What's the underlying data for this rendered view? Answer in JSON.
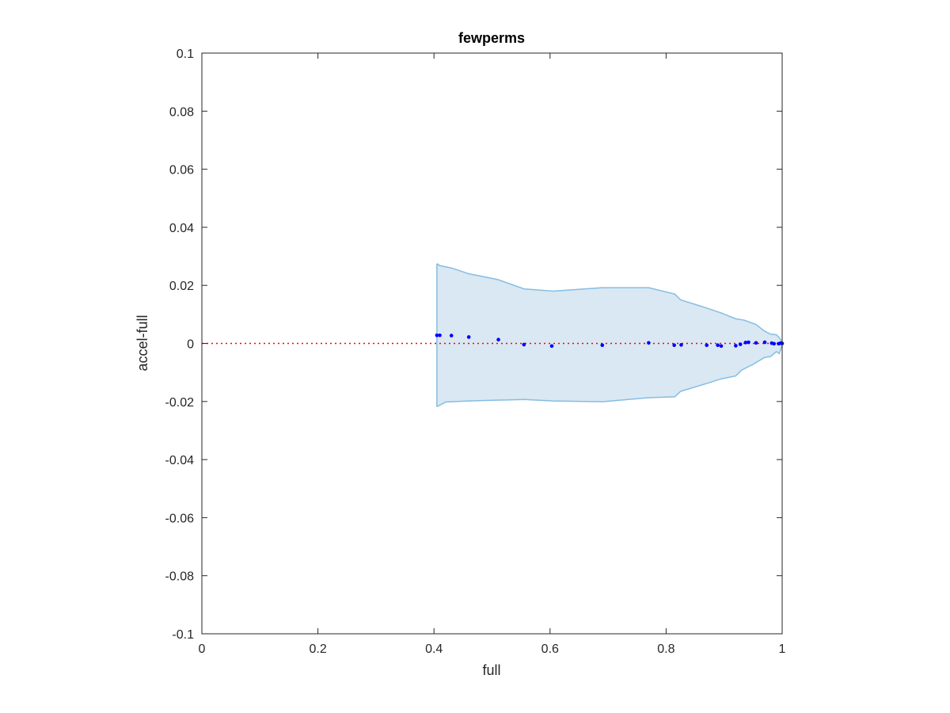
{
  "chart_data": {
    "type": "scatter",
    "title": "fewperms",
    "xlabel": "full",
    "ylabel": "accel-full",
    "xlim": [
      0,
      1
    ],
    "ylim": [
      -0.1,
      0.1
    ],
    "xticks": [
      0,
      0.2,
      0.4,
      0.6,
      0.8,
      1
    ],
    "xtick_labels": [
      "0",
      "0.2",
      "0.4",
      "0.6",
      "0.8",
      "1"
    ],
    "yticks": [
      0.1,
      0.08,
      0.06,
      0.04,
      0.02,
      0,
      -0.02,
      -0.04,
      -0.06,
      -0.08,
      -0.1
    ],
    "ytick_labels": [
      "0.1",
      "0.08",
      "0.06",
      "0.04",
      "0.02",
      "0",
      "-0.02",
      "-0.04",
      "-0.06",
      "-0.08",
      "-0.1"
    ],
    "grid": false,
    "reference_line": {
      "y": 0,
      "style": "dotted",
      "color": "#ff0000"
    },
    "band": {
      "fill": "#d9e8f3",
      "edge": "#86bde2",
      "upper": [
        [
          0.405,
          0.0275
        ],
        [
          0.41,
          0.0268
        ],
        [
          0.43,
          0.026
        ],
        [
          0.46,
          0.024
        ],
        [
          0.51,
          0.022
        ],
        [
          0.555,
          0.0188
        ],
        [
          0.605,
          0.018
        ],
        [
          0.69,
          0.0192
        ],
        [
          0.77,
          0.0192
        ],
        [
          0.815,
          0.017
        ],
        [
          0.825,
          0.015
        ],
        [
          0.87,
          0.0122
        ],
        [
          0.895,
          0.0105
        ],
        [
          0.92,
          0.0085
        ],
        [
          0.935,
          0.008
        ],
        [
          0.955,
          0.0065
        ],
        [
          0.97,
          0.0042
        ],
        [
          0.98,
          0.0032
        ],
        [
          0.99,
          0.003
        ],
        [
          0.995,
          0.002
        ],
        [
          1,
          0.0005
        ]
      ],
      "lower": [
        [
          0.405,
          -0.0218
        ],
        [
          0.42,
          -0.0202
        ],
        [
          0.46,
          -0.0198
        ],
        [
          0.555,
          -0.0193
        ],
        [
          0.605,
          -0.0198
        ],
        [
          0.69,
          -0.0201
        ],
        [
          0.77,
          -0.0187
        ],
        [
          0.815,
          -0.0184
        ],
        [
          0.825,
          -0.0165
        ],
        [
          0.87,
          -0.0138
        ],
        [
          0.895,
          -0.0122
        ],
        [
          0.92,
          -0.0112
        ],
        [
          0.93,
          -0.0092
        ],
        [
          0.95,
          -0.0072
        ],
        [
          0.97,
          -0.0048
        ],
        [
          0.98,
          -0.0045
        ],
        [
          0.99,
          -0.0028
        ],
        [
          0.995,
          -0.0035
        ],
        [
          1,
          -0.0005
        ]
      ]
    },
    "series": [
      {
        "color": "#0000ff",
        "points": [
          [
            0.405,
            0.0028
          ],
          [
            0.41,
            0.0028
          ],
          [
            0.43,
            0.0027
          ],
          [
            0.46,
            0.0022
          ],
          [
            0.511,
            0.0013
          ],
          [
            0.555,
            -0.0004
          ],
          [
            0.603,
            -0.0009
          ],
          [
            0.69,
            -0.0006
          ],
          [
            0.77,
            0.0002
          ],
          [
            0.814,
            -0.0006
          ],
          [
            0.826,
            -0.0005
          ],
          [
            0.87,
            -0.0006
          ],
          [
            0.889,
            -0.0006
          ],
          [
            0.895,
            -0.0009
          ],
          [
            0.92,
            -0.0008
          ],
          [
            0.928,
            -0.0003
          ],
          [
            0.937,
            0.0003
          ],
          [
            0.942,
            0.0004
          ],
          [
            0.955,
            0.0002
          ],
          [
            0.97,
            0.0004
          ],
          [
            0.982,
            0.0001
          ],
          [
            0.986,
            -0.0001
          ],
          [
            0.994,
            -0.0001
          ],
          [
            0.997,
            0.0001
          ],
          [
            1,
            0
          ]
        ]
      }
    ]
  }
}
